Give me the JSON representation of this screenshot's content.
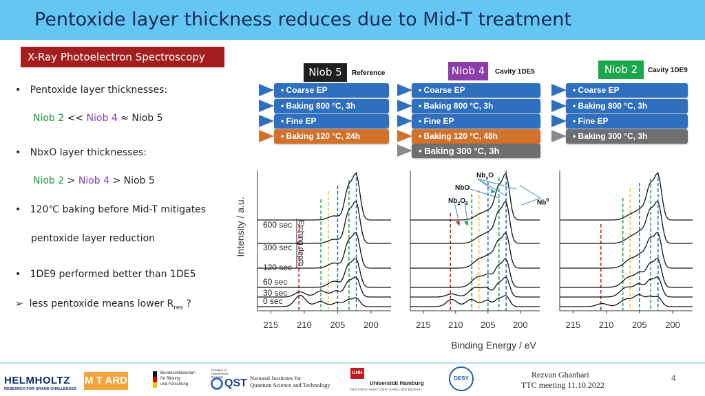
{
  "title": "Pentoxide layer thickness reduces due to Mid-T treatment",
  "section_tag": "X-Ray Photoelectron Spectroscopy",
  "bullets": {
    "b1": "Pentoxide layer thicknesses:",
    "b1_line": {
      "a": "Niob 2",
      "op1": "<<",
      "b": "Niob 4",
      "op2": "≈",
      "c": "Niob 5"
    },
    "b2": "NbxO layer thicknesses:",
    "b2_line": {
      "a": "Niob 2",
      "op1": ">",
      "b": "Niob 4",
      "op2": ">",
      "c": "Niob 5"
    },
    "b3a": "120℃ baking before Mid-T mitigates",
    "b3b": "pentoxide layer reduction",
    "b4": "1DE9 performed better than 1DE5",
    "b5_prefix": "less pentoxide means lower R",
    "b5_sub": "res",
    "b5_suffix": "?",
    "bullet_char": "•",
    "arrow_char": "➢"
  },
  "samples": [
    {
      "label": "Niob 5",
      "note": "Reference",
      "color": "#1f1f1f",
      "steps": [
        {
          "text": "Coarse EP"
        },
        {
          "text": "Baking 800 °C, 3h"
        },
        {
          "text": "Fine EP"
        },
        {
          "text": "Baking 120 °C, 24h"
        }
      ]
    },
    {
      "label": "Niob 4",
      "note": "Cavity 1DE5",
      "color": "#8a3dab",
      "steps": [
        {
          "text": "Coarse EP"
        },
        {
          "text": "Baking 800 °C, 3h"
        },
        {
          "text": "Fine EP"
        },
        {
          "text": "Baking 120 °C, 48h"
        },
        {
          "text": "Baking 300 °C, 3h"
        }
      ]
    },
    {
      "label": "Niob 2",
      "note": "Cavity 1DE9",
      "color": "#1ca84a",
      "steps": [
        {
          "text": "Coarse EP"
        },
        {
          "text": "Baking 800 °C, 3h"
        },
        {
          "text": "Fine EP"
        },
        {
          "text": "Baking 300 °C, 3h"
        }
      ]
    }
  ],
  "chart_data": {
    "type": "line",
    "ylabel": "Intensity / a.u.",
    "xlabel": "Binding Energy / eV",
    "x_ticks": [
      "215",
      "210",
      "205",
      "200"
    ],
    "xlim": [
      217,
      197
    ],
    "etching_label": "Etching depth",
    "etch_times": [
      "600 sec",
      "300 sec",
      "120 sec",
      "60 sec",
      "30 sec",
      "0 sec"
    ],
    "annotations": {
      "nbxo_main": "Nb",
      "nbxo_sub": "x",
      "nbxo_end": "O",
      "nbo": "NbO",
      "nb2o5_a": "Nb",
      "nb2o5_b": "2",
      "nb2o5_c": "O",
      "nb2o5_d": "5",
      "nb0_main": "Nb",
      "nb0_sup": "0"
    },
    "reference_lines": [
      {
        "x": 210.8,
        "color": "#d62020"
      },
      {
        "x": 207.5,
        "color": "#1ca84a"
      },
      {
        "x": 206.4,
        "color": "#f1c232"
      },
      {
        "x": 205.0,
        "color": "#2f6fbf"
      },
      {
        "x": 203.3,
        "color": "#1ca84a"
      },
      {
        "x": 202.2,
        "color": "#2f6fbf"
      }
    ]
  },
  "footer": {
    "author": "Rezvan Ghanbari",
    "event": "TTC meeting 11.10.2022",
    "page": "4",
    "logos": {
      "helmholtz": "HELMHOLTZ",
      "helmholtz_sub": "RESEARCH FOR GRAND CHALLENGES",
      "mtard": "M T ARD",
      "bmbf1": "Bundesministerium",
      "bmbf2": "für Bildung",
      "bmbf3": "und Forschung",
      "qst_top": "Creation of Harmonious Diversity",
      "qst": "QST",
      "nist1": "National Institutes for",
      "nist2": "Quantum Science and Technology",
      "uhh": "UHH",
      "uhh_name": "Universität Hamburg",
      "uhh_sub": "DER FORSCHUNG | DER LEHRE | DER BILDUNG",
      "desy": "DESY"
    }
  }
}
